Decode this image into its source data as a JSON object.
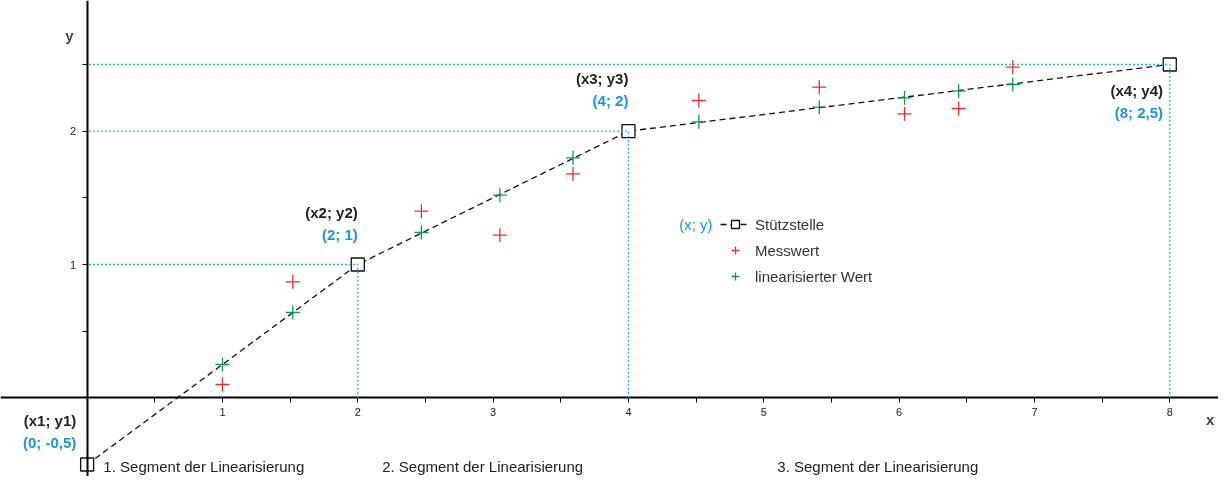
{
  "chart_data": {
    "type": "scatter",
    "xlabel": "x",
    "ylabel": "y",
    "xlim": [
      -0.64,
      8.36
    ],
    "ylim": [
      -0.59,
      2.98
    ],
    "xticks": [
      {
        "value": 0.5,
        "label": null
      },
      1,
      {
        "value": 1.5,
        "label": null
      },
      2,
      {
        "value": 2.5,
        "label": null
      },
      3,
      {
        "value": 3.5,
        "label": null
      },
      4,
      {
        "value": 4.5,
        "label": null
      },
      5,
      {
        "value": 5.5,
        "label": null
      },
      6,
      {
        "value": 6.5,
        "label": null
      },
      7,
      {
        "value": 7.5,
        "label": null
      },
      8
    ],
    "yticks": [
      {
        "value": 0.5,
        "label": null
      },
      1,
      {
        "value": 1.5,
        "label": null
      },
      2,
      {
        "value": 2.5,
        "label": null
      }
    ],
    "grid": false,
    "legend": "center",
    "series": [
      {
        "type": "line",
        "color": "#29a9e8",
        "line_style": "dotted",
        "marker": "none",
        "x": [
          8,
          8,
          0
        ],
        "values": [
          0,
          2.5,
          2.5
        ]
      },
      {
        "type": "line",
        "color": "#29a9e8",
        "line_style": "dotted",
        "marker": "none",
        "x": [
          4,
          4,
          0
        ],
        "values": [
          0,
          2,
          2
        ]
      },
      {
        "type": "line",
        "color": "#29a9e8",
        "line_style": "dotted",
        "marker": "none",
        "x": [
          2,
          2,
          0
        ],
        "values": [
          0,
          1,
          1
        ]
      },
      {
        "type": "line",
        "name": "Stützstelle",
        "color": "#111111",
        "line_style": "dashed",
        "marker": "square",
        "x": [
          0,
          2,
          4,
          8
        ],
        "values": [
          -0.5,
          1,
          2,
          2.5
        ]
      },
      {
        "type": "scatter",
        "name": "Messwert",
        "color": "#e8312a",
        "marker": "cross",
        "x": [
          1.0,
          1.52,
          2.47,
          3.05,
          3.59,
          4.52,
          5.41,
          6.04,
          6.44,
          6.84
        ],
        "values": [
          0.1,
          0.87,
          1.4,
          1.22,
          1.68,
          2.23,
          2.33,
          2.13,
          2.17,
          2.48
        ]
      },
      {
        "type": "scatter",
        "name": "linearisierter Wert",
        "color": "#12994a",
        "marker": "cross",
        "x": [
          1.0,
          1.52,
          2.47,
          3.05,
          3.59,
          4.52,
          5.41,
          6.04,
          6.44,
          6.84
        ],
        "values": [
          0.25,
          0.64,
          1.24,
          1.52,
          1.8,
          2.07,
          2.18,
          2.25,
          2.3,
          2.35
        ]
      }
    ],
    "annotations": [
      {
        "text": "(x1; y1)",
        "x": 0,
        "y": -0.5
      },
      {
        "text": "(0; -0,5)",
        "x": 0,
        "y": -0.5
      },
      {
        "text": "(x2; y2)",
        "x": 2,
        "y": 1
      },
      {
        "text": "(2; 1)",
        "x": 2,
        "y": 1
      },
      {
        "text": "(x3; y3)",
        "x": 4,
        "y": 2
      },
      {
        "text": "(4; 2)",
        "x": 4,
        "y": 2
      },
      {
        "text": "(x4; y4)",
        "x": 8,
        "y": 2.5
      },
      {
        "text": "(8; 2,5)",
        "x": 8,
        "y": 2.5
      },
      "(x; y)",
      "1. Segment der Linearisierung",
      "2. Segment der Linearisierung",
      "3. Segment der Linearisierung"
    ]
  }
}
